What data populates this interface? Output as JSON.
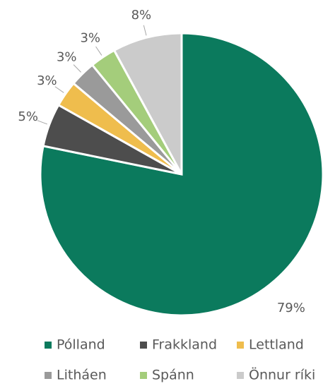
{
  "chart_data": {
    "type": "pie",
    "categories": [
      "Pólland",
      "Frakkland",
      "Lettland",
      "Litháen",
      "Spánn",
      "Önnur ríki"
    ],
    "values": [
      79,
      5,
      3,
      3,
      3,
      8
    ],
    "value_labels": [
      "79%",
      "5%",
      "3%",
      "3%",
      "3%",
      "8%"
    ],
    "colors": [
      "#0b7a5d",
      "#4d4d4d",
      "#efbd4d",
      "#9a9a9a",
      "#a4cd7b",
      "#cbcbcb"
    ]
  }
}
